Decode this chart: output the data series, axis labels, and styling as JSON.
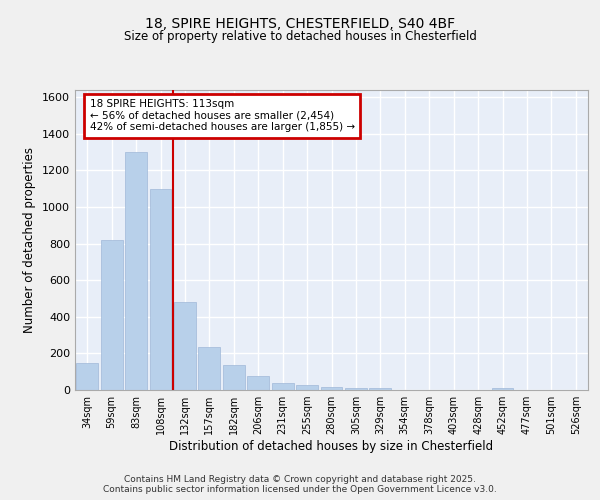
{
  "title1": "18, SPIRE HEIGHTS, CHESTERFIELD, S40 4BF",
  "title2": "Size of property relative to detached houses in Chesterfield",
  "xlabel": "Distribution of detached houses by size in Chesterfield",
  "ylabel": "Number of detached properties",
  "categories": [
    "34sqm",
    "59sqm",
    "83sqm",
    "108sqm",
    "132sqm",
    "157sqm",
    "182sqm",
    "206sqm",
    "231sqm",
    "255sqm",
    "280sqm",
    "305sqm",
    "329sqm",
    "354sqm",
    "378sqm",
    "403sqm",
    "428sqm",
    "452sqm",
    "477sqm",
    "501sqm",
    "526sqm"
  ],
  "values": [
    150,
    820,
    1300,
    1100,
    480,
    235,
    135,
    75,
    40,
    25,
    15,
    10,
    10,
    0,
    0,
    0,
    0,
    10,
    0,
    0,
    0
  ],
  "bar_color": "#b8d0ea",
  "bar_edgecolor": "#a0b8d8",
  "vline_color": "#cc0000",
  "annotation_line1": "18 SPIRE HEIGHTS: 113sqm",
  "annotation_line2": "← 56% of detached houses are smaller (2,454)",
  "annotation_line3": "42% of semi-detached houses are larger (1,855) →",
  "annotation_box_edgecolor": "#cc0000",
  "annotation_box_facecolor": "#ffffff",
  "ylim": [
    0,
    1640
  ],
  "yticks": [
    0,
    200,
    400,
    600,
    800,
    1000,
    1200,
    1400,
    1600
  ],
  "axes_bg_color": "#e8eef8",
  "fig_bg_color": "#f0f0f0",
  "grid_color": "#ffffff",
  "footer1": "Contains HM Land Registry data © Crown copyright and database right 2025.",
  "footer2": "Contains public sector information licensed under the Open Government Licence v3.0."
}
